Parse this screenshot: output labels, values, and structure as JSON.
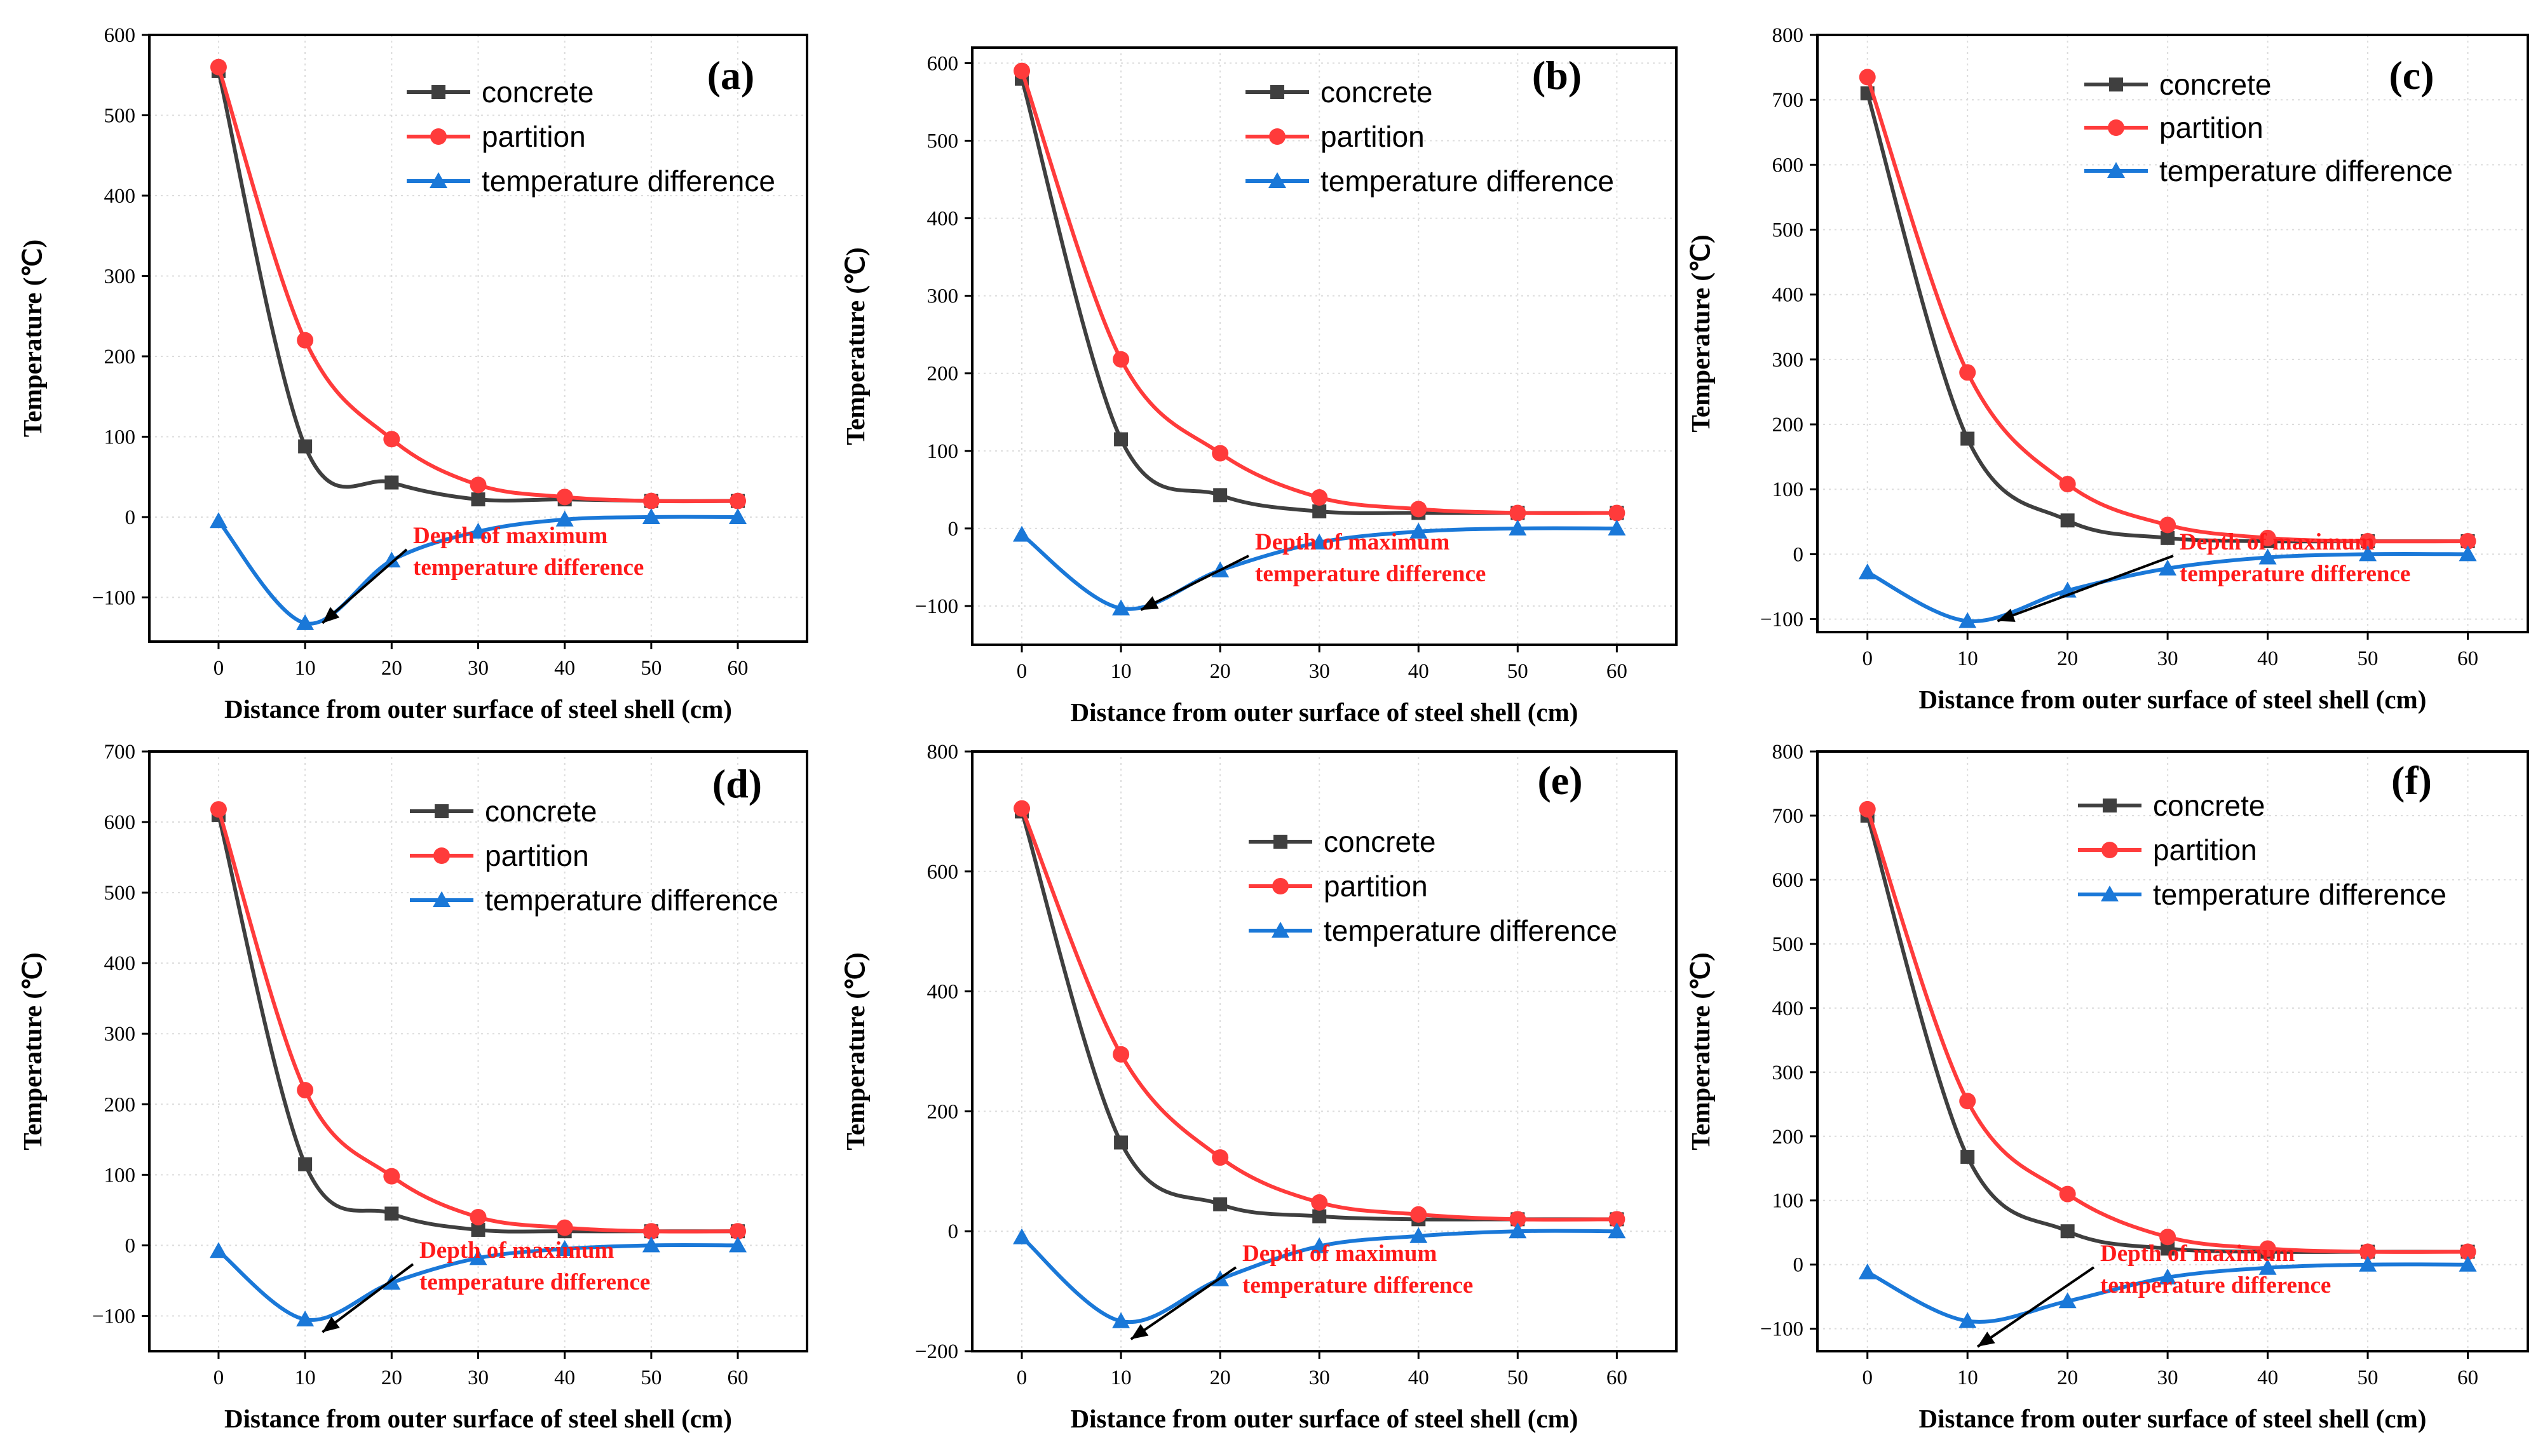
{
  "colors": {
    "concrete": "#3f3f3f",
    "partition": "#ff3b3b",
    "temperature_difference": "#1a78d8",
    "annotation": "#ff1a1a",
    "grid": "#dcdcdc"
  },
  "chart_data": [
    {
      "type": "line",
      "label": "(a)",
      "xlabel": "Distance from outer surface of steel shell  (cm)",
      "ylabel": "Temperature (℃)",
      "x": [
        0,
        10,
        20,
        30,
        40,
        50,
        60
      ],
      "xlim": [
        -8,
        68
      ],
      "ylim": [
        -155,
        600
      ],
      "xticks": [
        0,
        10,
        20,
        30,
        40,
        50,
        60
      ],
      "yticks": [
        -100,
        0,
        100,
        200,
        300,
        400,
        500,
        600
      ],
      "legend": [
        "concrete",
        "partition",
        "temperature difference"
      ],
      "series": [
        {
          "name": "concrete",
          "marker": "square",
          "values": [
            555,
            88,
            43,
            22,
            22,
            20,
            20
          ]
        },
        {
          "name": "partition",
          "marker": "circle",
          "values": [
            560,
            220,
            97,
            40,
            25,
            20,
            20
          ]
        },
        {
          "name": "temperature difference",
          "marker": "triangle",
          "values": [
            -5,
            -132,
            -54,
            -18,
            -3,
            0,
            0
          ]
        }
      ],
      "annotation": {
        "lines": [
          "Depth of maximum",
          "temperature difference"
        ],
        "arrow_to": [
          12,
          -132
        ]
      }
    },
    {
      "type": "line",
      "label": "(b)",
      "xlabel": "Distance from outer surface of steel shell  (cm)",
      "ylabel": "Temperature (℃)",
      "x": [
        0,
        10,
        20,
        30,
        40,
        50,
        60
      ],
      "xlim": [
        -5,
        66
      ],
      "ylim": [
        -150,
        620
      ],
      "xticks": [
        0,
        10,
        20,
        30,
        40,
        50,
        60
      ],
      "yticks": [
        -100,
        0,
        100,
        200,
        300,
        400,
        500,
        600
      ],
      "legend": [
        "concrete",
        "partition",
        "temperature difference"
      ],
      "series": [
        {
          "name": "concrete",
          "marker": "square",
          "values": [
            580,
            115,
            43,
            22,
            20,
            20,
            20
          ]
        },
        {
          "name": "partition",
          "marker": "circle",
          "values": [
            590,
            218,
            97,
            40,
            25,
            20,
            20
          ]
        },
        {
          "name": "temperature difference",
          "marker": "triangle",
          "values": [
            -8,
            -103,
            -54,
            -18,
            -4,
            0,
            0
          ]
        }
      ],
      "annotation": {
        "lines": [
          "Depth of maximum",
          "temperature difference"
        ],
        "arrow_to": [
          12,
          -105
        ]
      }
    },
    {
      "type": "line",
      "label": "(c)",
      "xlabel": "Distance from outer surface of steel shell  (cm)",
      "ylabel": "Temperature (℃)",
      "x": [
        0,
        10,
        20,
        30,
        40,
        50,
        60
      ],
      "xlim": [
        -5,
        66
      ],
      "ylim": [
        -120,
        800
      ],
      "xticks": [
        0,
        10,
        20,
        30,
        40,
        50,
        60
      ],
      "yticks": [
        -100,
        0,
        100,
        200,
        300,
        400,
        500,
        600,
        700,
        800
      ],
      "legend": [
        "concrete",
        "partition",
        "temperature difference"
      ],
      "series": [
        {
          "name": "concrete",
          "marker": "square",
          "values": [
            710,
            178,
            52,
            25,
            20,
            20,
            20
          ]
        },
        {
          "name": "partition",
          "marker": "circle",
          "values": [
            735,
            280,
            108,
            45,
            25,
            20,
            20
          ]
        },
        {
          "name": "temperature difference",
          "marker": "triangle",
          "values": [
            -28,
            -103,
            -56,
            -22,
            -5,
            0,
            0
          ]
        }
      ],
      "annotation": {
        "lines": [
          "Depth of maximum",
          "temperature difference"
        ],
        "arrow_to": [
          13,
          -103
        ]
      }
    },
    {
      "type": "line",
      "label": "(d)",
      "xlabel": "Distance from outer surface of steel shell  (cm)",
      "ylabel": "Temperature (℃)",
      "x": [
        0,
        10,
        20,
        30,
        40,
        50,
        60
      ],
      "xlim": [
        -8,
        68
      ],
      "ylim": [
        -150,
        700
      ],
      "xticks": [
        0,
        10,
        20,
        30,
        40,
        50,
        60
      ],
      "yticks": [
        -100,
        0,
        100,
        200,
        300,
        400,
        500,
        600,
        700
      ],
      "legend": [
        "concrete",
        "partition",
        "temperature difference"
      ],
      "series": [
        {
          "name": "concrete",
          "marker": "square",
          "values": [
            610,
            115,
            45,
            22,
            20,
            20,
            20
          ]
        },
        {
          "name": "partition",
          "marker": "circle",
          "values": [
            618,
            220,
            98,
            40,
            25,
            20,
            20
          ]
        },
        {
          "name": "temperature difference",
          "marker": "triangle",
          "values": [
            -8,
            -105,
            -53,
            -18,
            -5,
            0,
            0
          ]
        }
      ],
      "annotation": {
        "lines": [
          "Depth of maximum",
          "temperature difference"
        ],
        "arrow_to": [
          12,
          -123
        ]
      }
    },
    {
      "type": "line",
      "label": "(e)",
      "xlabel": "Distance from outer surface of steel shell  (cm)",
      "ylabel": "Temperature (℃)",
      "x": [
        0,
        10,
        20,
        30,
        40,
        50,
        60
      ],
      "xlim": [
        -5,
        66
      ],
      "ylim": [
        -200,
        800
      ],
      "xticks": [
        0,
        10,
        20,
        30,
        40,
        50,
        60
      ],
      "yticks": [
        -200,
        0,
        200,
        400,
        600,
        800
      ],
      "legend": [
        "concrete",
        "partition",
        "temperature difference"
      ],
      "series": [
        {
          "name": "concrete",
          "marker": "square",
          "values": [
            700,
            148,
            45,
            25,
            20,
            20,
            20
          ]
        },
        {
          "name": "partition",
          "marker": "circle",
          "values": [
            705,
            295,
            123,
            48,
            28,
            20,
            20
          ]
        },
        {
          "name": "temperature difference",
          "marker": "triangle",
          "values": [
            -10,
            -150,
            -80,
            -25,
            -8,
            0,
            0
          ]
        }
      ],
      "annotation": {
        "lines": [
          "Depth of maximum",
          "temperature difference"
        ],
        "arrow_to": [
          11,
          -180
        ]
      }
    },
    {
      "type": "line",
      "label": "(f)",
      "xlabel": "Distance from outer surface of steel shell (cm)",
      "ylabel": "Temperature (℃)",
      "x": [
        0,
        10,
        20,
        30,
        40,
        50,
        60
      ],
      "xlim": [
        -5,
        66
      ],
      "ylim": [
        -135,
        800
      ],
      "xticks": [
        0,
        10,
        20,
        30,
        40,
        50,
        60
      ],
      "yticks": [
        -100,
        0,
        100,
        200,
        300,
        400,
        500,
        600,
        700,
        800
      ],
      "legend": [
        "concrete",
        "partition",
        "temperature difference"
      ],
      "series": [
        {
          "name": "concrete",
          "marker": "square",
          "values": [
            700,
            168,
            52,
            25,
            20,
            20,
            20
          ]
        },
        {
          "name": "partition",
          "marker": "circle",
          "values": [
            710,
            255,
            110,
            43,
            25,
            20,
            20
          ]
        },
        {
          "name": "temperature difference",
          "marker": "triangle",
          "values": [
            -12,
            -88,
            -57,
            -20,
            -5,
            0,
            0
          ]
        }
      ],
      "annotation": {
        "lines": [
          "Depth of maximum",
          "temperature difference"
        ],
        "arrow_to": [
          11,
          -128
        ]
      }
    }
  ]
}
